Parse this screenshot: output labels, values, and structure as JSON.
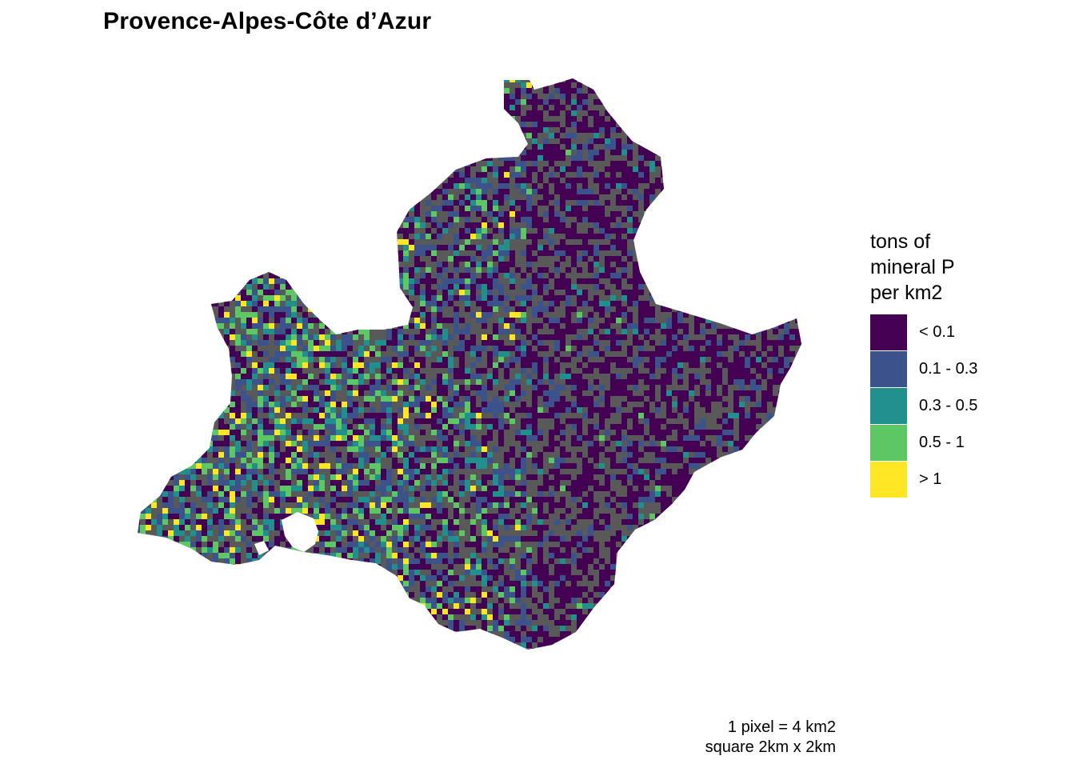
{
  "title": "Provence-Alpes-Côte d’Azur",
  "legend": {
    "title_lines": [
      "tons of",
      "mineral P",
      "per km2"
    ],
    "items": [
      {
        "label": "< 0.1",
        "color": "#440154"
      },
      {
        "label": "0.1 - 0.3",
        "color": "#3B528B"
      },
      {
        "label": "0.3 - 0.5",
        "color": "#21908C"
      },
      {
        "label": "0.5 - 1",
        "color": "#5DC863"
      },
      {
        "label": "> 1",
        "color": "#FDE725"
      }
    ]
  },
  "caption": {
    "line1": "1 pixel = 4 km2",
    "line2": "square 2km x 2km"
  },
  "map_colors": {
    "background_region": "#595959",
    "water": "#ffffff"
  }
}
